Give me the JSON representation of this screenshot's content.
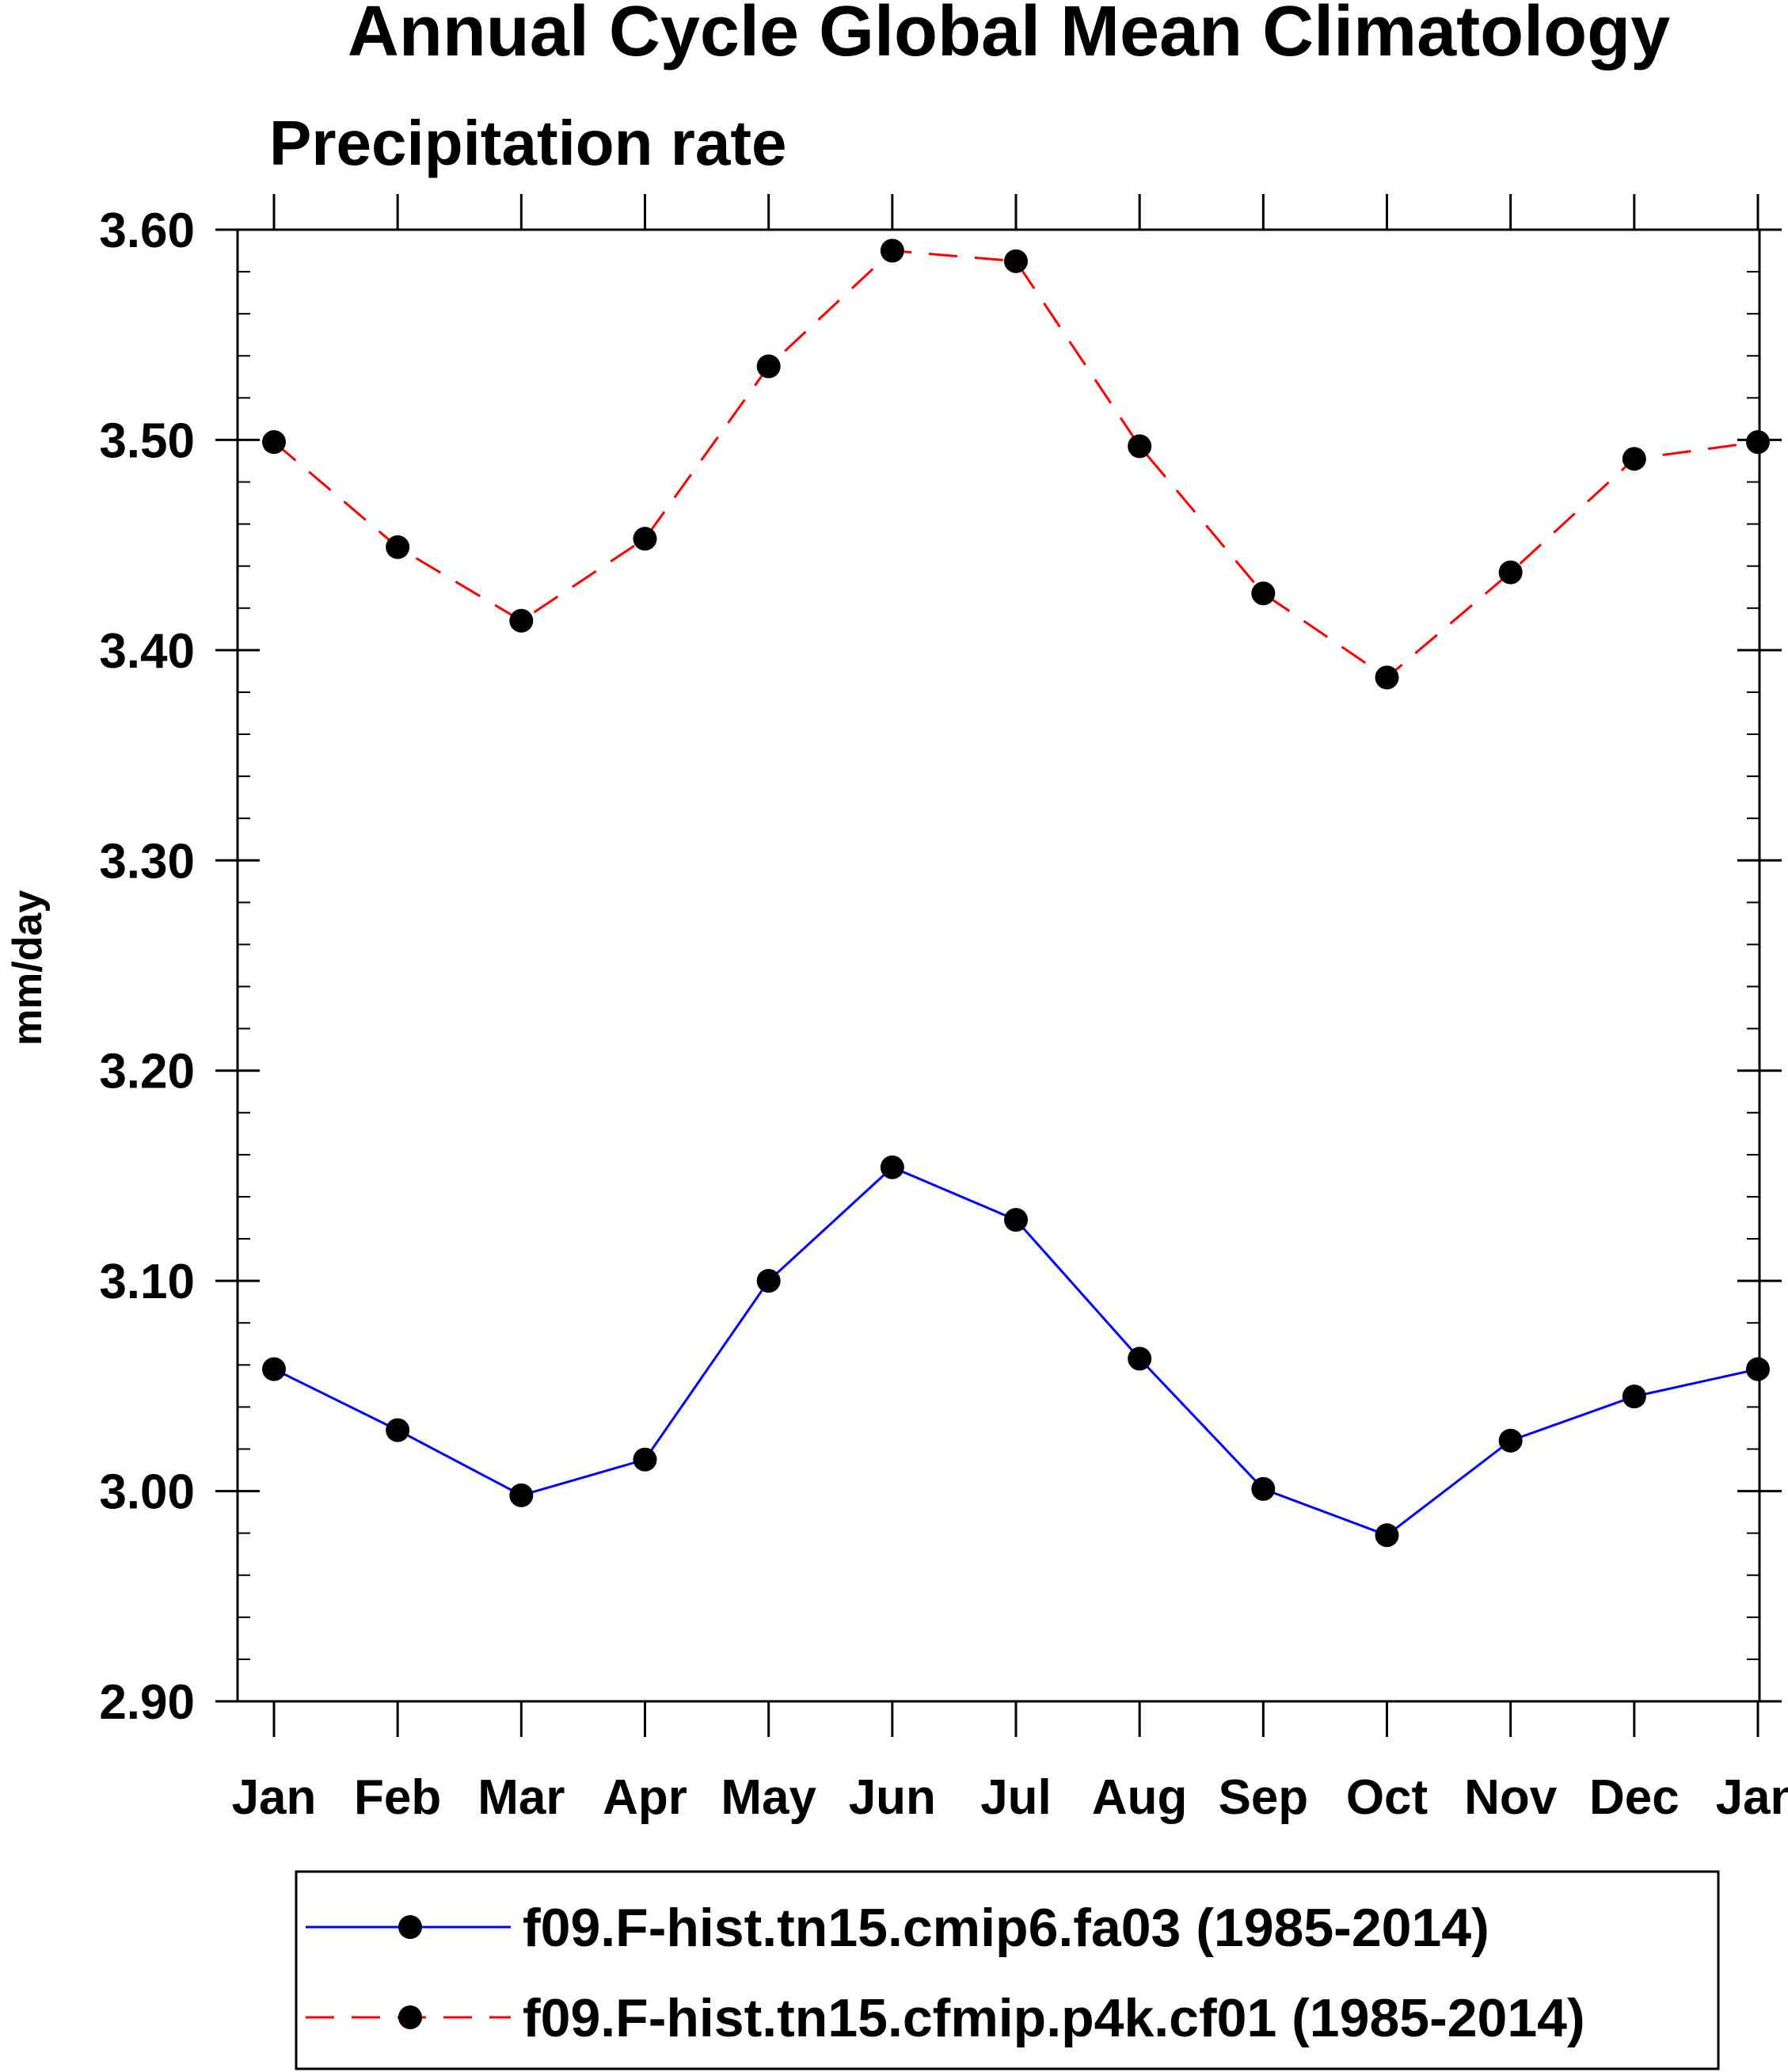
{
  "chart_data": {
    "type": "line",
    "title": "Annual Cycle Global Mean Climatology",
    "subtitle": "Precipitation rate",
    "xlabel": "",
    "ylabel": "mm/day",
    "categories": [
      "Jan",
      "Feb",
      "Mar",
      "Apr",
      "May",
      "Jun",
      "Jul",
      "Aug",
      "Sep",
      "Oct",
      "Nov",
      "Dec",
      "Jan"
    ],
    "ylim": [
      2.9,
      3.6
    ],
    "yticks": [
      "2.90",
      "3.00",
      "3.10",
      "3.20",
      "3.30",
      "3.40",
      "3.50",
      "3.60"
    ],
    "grid": false,
    "legend_position": "bottom",
    "series": [
      {
        "name": "f09.F-hist.tn15.cmip6.fa03 (1985-2014)",
        "color": "#0000ff",
        "line_style": "solid",
        "marker": "filled-circle",
        "values": [
          3.058,
          3.029,
          2.998,
          3.015,
          3.1,
          3.154,
          3.129,
          3.063,
          3.001,
          2.979,
          3.024,
          3.045,
          3.058
        ]
      },
      {
        "name": "f09.F-hist.tn15.cfmip.p4k.cf01 (1985-2014)",
        "color": "#ff0000",
        "line_style": "dashed",
        "marker": "filled-circle",
        "values": [
          3.499,
          3.449,
          3.414,
          3.453,
          3.535,
          3.59,
          3.585,
          3.497,
          3.427,
          3.387,
          3.437,
          3.491,
          3.499
        ]
      }
    ]
  }
}
